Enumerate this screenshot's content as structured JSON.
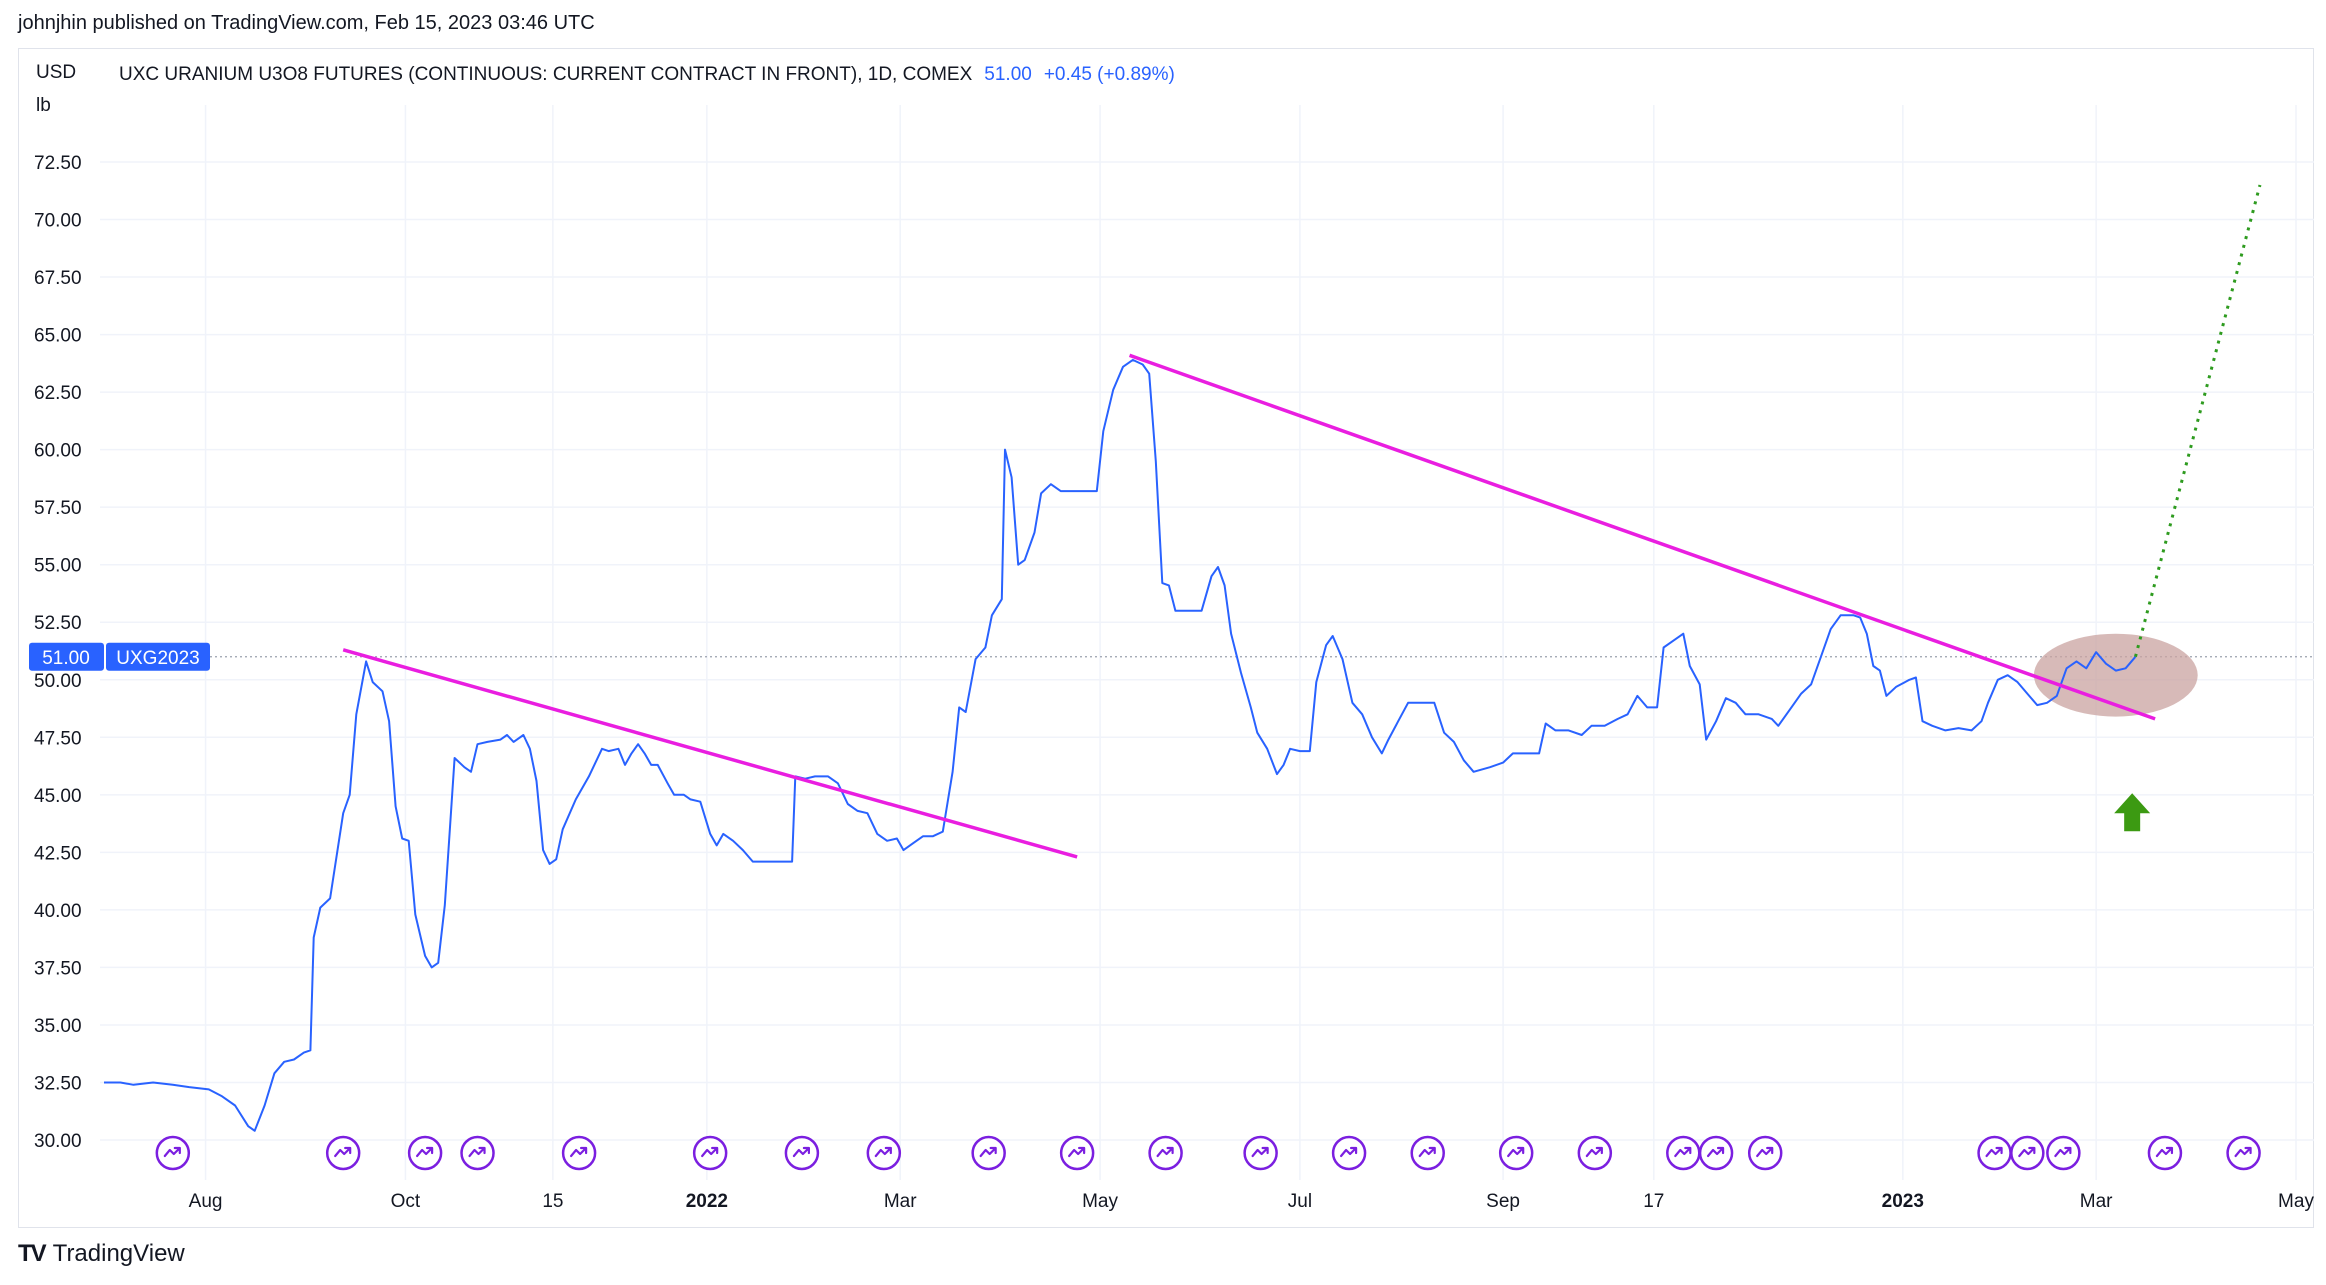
{
  "header": {
    "published_text": "johnjhin published on TradingView.com, Feb 15, 2023 03:46 UTC"
  },
  "legend": {
    "currency": "USD",
    "unit": "lb",
    "symbol_title": "UXC URANIUM U3O8 FUTURES (CONTINUOUS: CURRENT CONTRACT IN FRONT), 1D, COMEX",
    "last_price": "51.00",
    "change": "+0.45 (+0.89%)"
  },
  "price_tag": {
    "value": "51.00",
    "symbol": "UXG2023"
  },
  "footer": {
    "logo_text": "TV",
    "brand": "TradingView"
  },
  "colors": {
    "series": "#2962ff",
    "trendline": "#e91ee0",
    "projection": "#2e9b1f",
    "highlight": "#c9a3a0",
    "arrow": "#3c9a12",
    "event": "#7b1fe0",
    "tag_bg": "#2962ff"
  },
  "chart_data": {
    "type": "line",
    "title": "UXC URANIUM U3O8 FUTURES (CONTINUOUS: CURRENT CONTRACT IN FRONT), 1D, COMEX",
    "ylabel": "USD lb",
    "ylim": [
      30,
      73.5
    ],
    "xlim": [
      "2021-07-01",
      "2023-05-01"
    ],
    "y_ticks": [
      "30.00",
      "32.50",
      "35.00",
      "37.50",
      "40.00",
      "42.50",
      "45.00",
      "47.50",
      "50.00",
      "52.50",
      "55.00",
      "57.50",
      "60.00",
      "62.50",
      "65.00",
      "67.50",
      "70.00",
      "72.50"
    ],
    "x_ticks": [
      {
        "label": "Aug",
        "date": "2021-08-01",
        "bold": false
      },
      {
        "label": "Oct",
        "date": "2021-10-01",
        "bold": false
      },
      {
        "label": "15",
        "date": "2021-11-15",
        "bold": false
      },
      {
        "label": "2022",
        "date": "2022-01-01",
        "bold": true
      },
      {
        "label": "Mar",
        "date": "2022-03-01",
        "bold": false
      },
      {
        "label": "May",
        "date": "2022-05-01",
        "bold": false
      },
      {
        "label": "Jul",
        "date": "2022-07-01",
        "bold": false
      },
      {
        "label": "Sep",
        "date": "2022-09-01",
        "bold": false
      },
      {
        "label": "17",
        "date": "2022-10-17",
        "bold": false
      },
      {
        "label": "2023",
        "date": "2023-01-01",
        "bold": true
      },
      {
        "label": "Mar",
        "date": "2023-03-01",
        "bold": false
      },
      {
        "label": "May",
        "date": "2023-05-01",
        "bold": false
      }
    ],
    "series": [
      {
        "points": [
          [
            "2021-07-01",
            32.5
          ],
          [
            "2021-07-06",
            32.5
          ],
          [
            "2021-07-10",
            32.4
          ],
          [
            "2021-07-16",
            32.5
          ],
          [
            "2021-07-22",
            32.4
          ],
          [
            "2021-07-27",
            32.3
          ],
          [
            "2021-08-02",
            32.2
          ],
          [
            "2021-08-06",
            31.9
          ],
          [
            "2021-08-10",
            31.5
          ],
          [
            "2021-08-14",
            30.6
          ],
          [
            "2021-08-16",
            30.4
          ],
          [
            "2021-08-19",
            31.5
          ],
          [
            "2021-08-22",
            32.9
          ],
          [
            "2021-08-25",
            33.4
          ],
          [
            "2021-08-28",
            33.5
          ],
          [
            "2021-08-31",
            33.8
          ],
          [
            "2021-09-02",
            33.9
          ],
          [
            "2021-09-03",
            38.8
          ],
          [
            "2021-09-05",
            40.1
          ],
          [
            "2021-09-08",
            40.5
          ],
          [
            "2021-09-12",
            44.2
          ],
          [
            "2021-09-14",
            45.0
          ],
          [
            "2021-09-16",
            48.5
          ],
          [
            "2021-09-19",
            50.8
          ],
          [
            "2021-09-21",
            49.9
          ],
          [
            "2021-09-24",
            49.5
          ],
          [
            "2021-09-26",
            48.2
          ],
          [
            "2021-09-28",
            44.5
          ],
          [
            "2021-09-30",
            43.1
          ],
          [
            "2021-10-02",
            43.0
          ],
          [
            "2021-10-04",
            39.8
          ],
          [
            "2021-10-07",
            38.0
          ],
          [
            "2021-10-09",
            37.5
          ],
          [
            "2021-10-11",
            37.7
          ],
          [
            "2021-10-13",
            40.2
          ],
          [
            "2021-10-16",
            46.6
          ],
          [
            "2021-10-19",
            46.2
          ],
          [
            "2021-10-21",
            46.0
          ],
          [
            "2021-10-23",
            47.2
          ],
          [
            "2021-10-26",
            47.3
          ],
          [
            "2021-10-30",
            47.4
          ],
          [
            "2021-11-01",
            47.6
          ],
          [
            "2021-11-03",
            47.3
          ],
          [
            "2021-11-06",
            47.6
          ],
          [
            "2021-11-08",
            47.0
          ],
          [
            "2021-11-10",
            45.6
          ],
          [
            "2021-11-12",
            42.6
          ],
          [
            "2021-11-14",
            42.0
          ],
          [
            "2021-11-16",
            42.2
          ],
          [
            "2021-11-18",
            43.5
          ],
          [
            "2021-11-22",
            44.8
          ],
          [
            "2021-11-26",
            45.8
          ],
          [
            "2021-11-30",
            47.0
          ],
          [
            "2021-12-02",
            46.9
          ],
          [
            "2021-12-05",
            47.0
          ],
          [
            "2021-12-07",
            46.3
          ],
          [
            "2021-12-09",
            46.8
          ],
          [
            "2021-12-11",
            47.2
          ],
          [
            "2021-12-13",
            46.8
          ],
          [
            "2021-12-15",
            46.3
          ],
          [
            "2021-12-17",
            46.3
          ],
          [
            "2021-12-20",
            45.5
          ],
          [
            "2021-12-22",
            45.0
          ],
          [
            "2021-12-25",
            45.0
          ],
          [
            "2021-12-27",
            44.8
          ],
          [
            "2021-12-30",
            44.7
          ],
          [
            "2022-01-02",
            43.3
          ],
          [
            "2022-01-04",
            42.8
          ],
          [
            "2022-01-06",
            43.3
          ],
          [
            "2022-01-09",
            43.0
          ],
          [
            "2022-01-12",
            42.6
          ],
          [
            "2022-01-15",
            42.1
          ],
          [
            "2022-01-18",
            42.1
          ],
          [
            "2022-01-21",
            42.1
          ],
          [
            "2022-01-24",
            42.1
          ],
          [
            "2022-01-27",
            42.1
          ],
          [
            "2022-01-28",
            45.8
          ],
          [
            "2022-01-31",
            45.7
          ],
          [
            "2022-02-03",
            45.8
          ],
          [
            "2022-02-07",
            45.8
          ],
          [
            "2022-02-10",
            45.5
          ],
          [
            "2022-02-13",
            44.6
          ],
          [
            "2022-02-16",
            44.3
          ],
          [
            "2022-02-19",
            44.2
          ],
          [
            "2022-02-22",
            43.3
          ],
          [
            "2022-02-25",
            43.0
          ],
          [
            "2022-02-28",
            43.1
          ],
          [
            "2022-03-02",
            42.6
          ],
          [
            "2022-03-05",
            42.9
          ],
          [
            "2022-03-08",
            43.2
          ],
          [
            "2022-03-11",
            43.2
          ],
          [
            "2022-03-14",
            43.4
          ],
          [
            "2022-03-17",
            46.0
          ],
          [
            "2022-03-19",
            48.8
          ],
          [
            "2022-03-21",
            48.6
          ],
          [
            "2022-03-24",
            50.9
          ],
          [
            "2022-03-27",
            51.4
          ],
          [
            "2022-03-29",
            52.8
          ],
          [
            "2022-04-01",
            53.5
          ],
          [
            "2022-04-02",
            60.0
          ],
          [
            "2022-04-04",
            58.8
          ],
          [
            "2022-04-06",
            55.0
          ],
          [
            "2022-04-08",
            55.2
          ],
          [
            "2022-04-11",
            56.4
          ],
          [
            "2022-04-13",
            58.1
          ],
          [
            "2022-04-16",
            58.5
          ],
          [
            "2022-04-19",
            58.2
          ],
          [
            "2022-04-23",
            58.2
          ],
          [
            "2022-04-27",
            58.2
          ],
          [
            "2022-04-30",
            58.2
          ],
          [
            "2022-05-02",
            60.8
          ],
          [
            "2022-05-05",
            62.6
          ],
          [
            "2022-05-08",
            63.6
          ],
          [
            "2022-05-11",
            63.9
          ],
          [
            "2022-05-14",
            63.7
          ],
          [
            "2022-05-16",
            63.3
          ],
          [
            "2022-05-18",
            59.5
          ],
          [
            "2022-05-20",
            54.2
          ],
          [
            "2022-05-22",
            54.1
          ],
          [
            "2022-05-24",
            53.0
          ],
          [
            "2022-05-28",
            53.0
          ],
          [
            "2022-06-01",
            53.0
          ],
          [
            "2022-06-04",
            54.5
          ],
          [
            "2022-06-06",
            54.9
          ],
          [
            "2022-06-08",
            54.1
          ],
          [
            "2022-06-10",
            52.0
          ],
          [
            "2022-06-13",
            50.3
          ],
          [
            "2022-06-16",
            48.8
          ],
          [
            "2022-06-18",
            47.7
          ],
          [
            "2022-06-21",
            47.0
          ],
          [
            "2022-06-24",
            45.9
          ],
          [
            "2022-06-26",
            46.3
          ],
          [
            "2022-06-28",
            47.0
          ],
          [
            "2022-07-01",
            46.9
          ],
          [
            "2022-07-04",
            46.9
          ],
          [
            "2022-07-06",
            49.9
          ],
          [
            "2022-07-09",
            51.5
          ],
          [
            "2022-07-11",
            51.9
          ],
          [
            "2022-07-14",
            50.9
          ],
          [
            "2022-07-17",
            49.0
          ],
          [
            "2022-07-20",
            48.5
          ],
          [
            "2022-07-23",
            47.5
          ],
          [
            "2022-07-26",
            46.8
          ],
          [
            "2022-07-28",
            47.4
          ],
          [
            "2022-07-31",
            48.2
          ],
          [
            "2022-08-03",
            49.0
          ],
          [
            "2022-08-07",
            49.0
          ],
          [
            "2022-08-11",
            49.0
          ],
          [
            "2022-08-14",
            47.7
          ],
          [
            "2022-08-17",
            47.3
          ],
          [
            "2022-08-20",
            46.5
          ],
          [
            "2022-08-23",
            46.0
          ],
          [
            "2022-08-28",
            46.2
          ],
          [
            "2022-09-01",
            46.4
          ],
          [
            "2022-09-04",
            46.8
          ],
          [
            "2022-09-08",
            46.8
          ],
          [
            "2022-09-12",
            46.8
          ],
          [
            "2022-09-14",
            48.1
          ],
          [
            "2022-09-17",
            47.8
          ],
          [
            "2022-09-21",
            47.8
          ],
          [
            "2022-09-25",
            47.6
          ],
          [
            "2022-09-28",
            48.0
          ],
          [
            "2022-10-02",
            48.0
          ],
          [
            "2022-10-06",
            48.3
          ],
          [
            "2022-10-09",
            48.5
          ],
          [
            "2022-10-12",
            49.3
          ],
          [
            "2022-10-15",
            48.8
          ],
          [
            "2022-10-18",
            48.8
          ],
          [
            "2022-10-20",
            51.4
          ],
          [
            "2022-10-23",
            51.7
          ],
          [
            "2022-10-26",
            52.0
          ],
          [
            "2022-10-28",
            50.6
          ],
          [
            "2022-10-31",
            49.8
          ],
          [
            "2022-11-02",
            47.4
          ],
          [
            "2022-11-05",
            48.2
          ],
          [
            "2022-11-08",
            49.2
          ],
          [
            "2022-11-11",
            49.0
          ],
          [
            "2022-11-14",
            48.5
          ],
          [
            "2022-11-18",
            48.5
          ],
          [
            "2022-11-22",
            48.3
          ],
          [
            "2022-11-24",
            48.0
          ],
          [
            "2022-11-28",
            48.8
          ],
          [
            "2022-12-01",
            49.4
          ],
          [
            "2022-12-04",
            49.8
          ],
          [
            "2022-12-07",
            51.0
          ],
          [
            "2022-12-10",
            52.2
          ],
          [
            "2022-12-13",
            52.8
          ],
          [
            "2022-12-17",
            52.8
          ],
          [
            "2022-12-19",
            52.7
          ],
          [
            "2022-12-21",
            52.0
          ],
          [
            "2022-12-23",
            50.6
          ],
          [
            "2022-12-25",
            50.4
          ],
          [
            "2022-12-27",
            49.3
          ],
          [
            "2022-12-30",
            49.7
          ],
          [
            "2023-01-03",
            50.0
          ],
          [
            "2023-01-05",
            50.1
          ],
          [
            "2023-01-07",
            48.2
          ],
          [
            "2023-01-10",
            48.0
          ],
          [
            "2023-01-14",
            47.8
          ],
          [
            "2023-01-18",
            47.9
          ],
          [
            "2023-01-22",
            47.8
          ],
          [
            "2023-01-25",
            48.2
          ],
          [
            "2023-01-27",
            49.0
          ],
          [
            "2023-01-30",
            50.0
          ],
          [
            "2023-02-02",
            50.2
          ],
          [
            "2023-02-05",
            49.9
          ],
          [
            "2023-02-08",
            49.4
          ],
          [
            "2023-02-11",
            48.9
          ],
          [
            "2023-02-14",
            49.0
          ],
          [
            "2023-02-17",
            49.3
          ],
          [
            "2023-02-20",
            50.5
          ],
          [
            "2023-02-23",
            50.8
          ],
          [
            "2023-02-26",
            50.5
          ],
          [
            "2023-03-01",
            51.2
          ],
          [
            "2023-03-04",
            50.7
          ],
          [
            "2023-03-07",
            50.4
          ],
          [
            "2023-03-10",
            50.5
          ],
          [
            "2023-03-13",
            51.0
          ]
        ]
      }
    ],
    "current_price": 51.0,
    "trendlines": [
      {
        "from": [
          "2021-09-12",
          51.3
        ],
        "to": [
          "2022-04-24",
          42.3
        ]
      },
      {
        "from": [
          "2022-05-10",
          64.1
        ],
        "to": [
          "2023-03-19",
          48.3
        ]
      }
    ],
    "projection": {
      "from": [
        "2023-03-13",
        51.0
      ],
      "to": [
        "2023-04-20",
        71.5
      ]
    },
    "highlight": {
      "center": [
        "2023-03-07",
        50.2
      ],
      "rx_days": 25,
      "ry_value": 1.8
    },
    "up_arrow": {
      "at": [
        "2023-03-12",
        44.2
      ]
    },
    "event_dates": [
      "2021-07-22",
      "2021-09-12",
      "2021-10-07",
      "2021-10-23",
      "2021-11-23",
      "2022-01-02",
      "2022-01-30",
      "2022-02-24",
      "2022-03-28",
      "2022-04-24",
      "2022-05-21",
      "2022-06-19",
      "2022-07-16",
      "2022-08-09",
      "2022-09-05",
      "2022-09-29",
      "2022-10-26",
      "2022-11-05",
      "2022-11-20",
      "2023-01-29",
      "2023-02-08",
      "2023-02-19",
      "2023-03-22",
      "2023-04-15"
    ],
    "grid": true,
    "legend_position": "top-left"
  }
}
